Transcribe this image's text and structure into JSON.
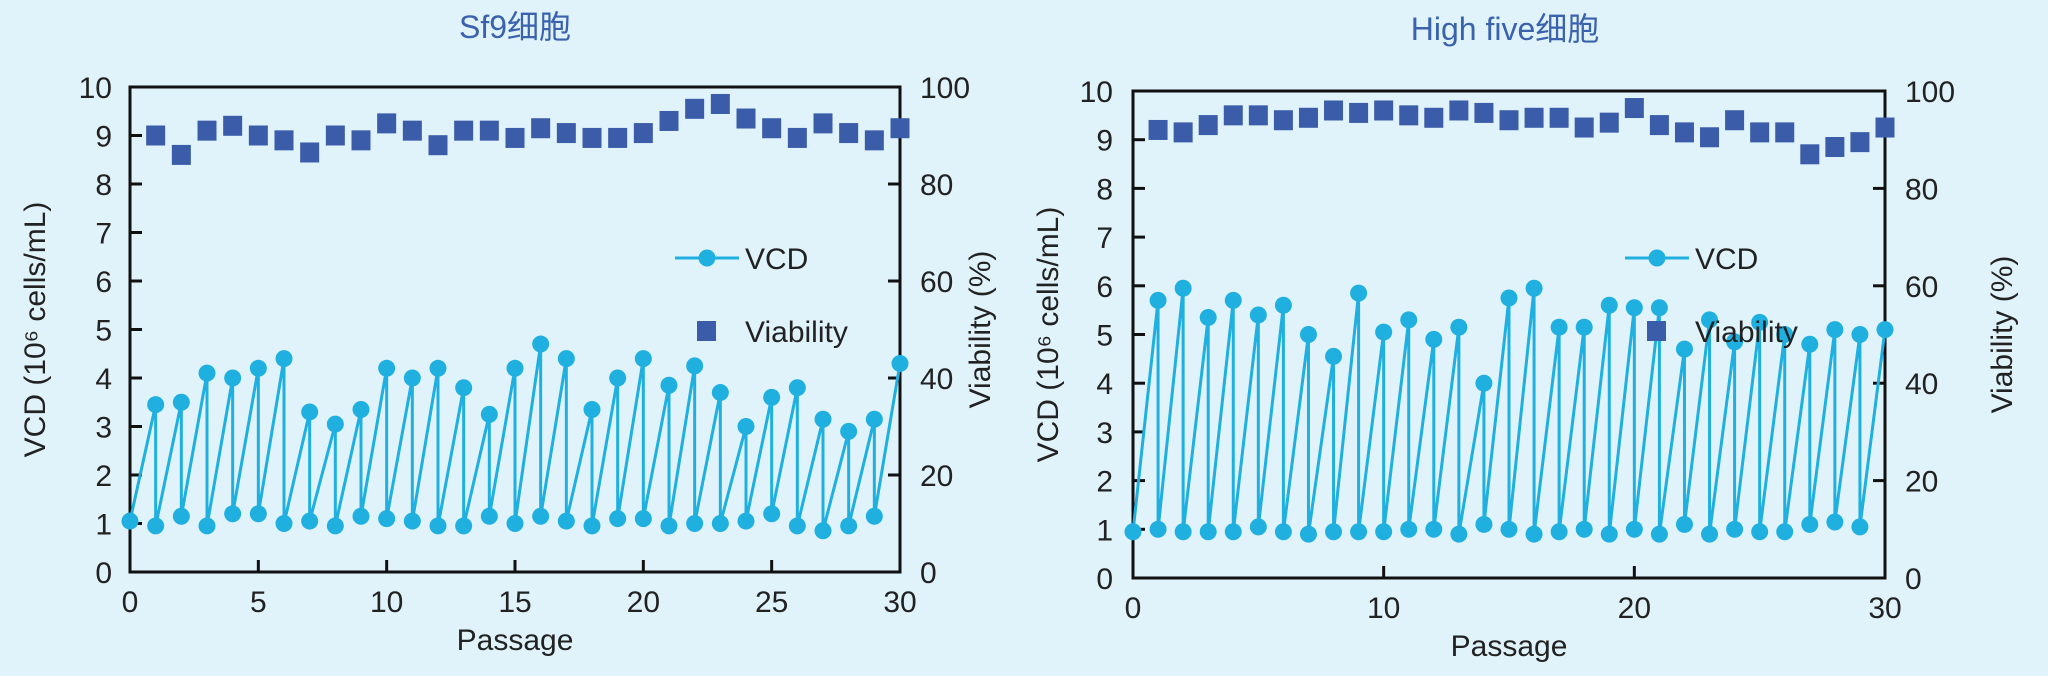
{
  "colors": {
    "background": "#e0f3fb",
    "vcd": "#1fb0e0",
    "viability": "#3a5ca9",
    "title": "#3a62ad"
  },
  "chart_data": [
    {
      "type": "line+scatter (dual axis)",
      "title": "Sf9细胞",
      "xlabel": "Passage",
      "ylabel": "VCD (10⁶ cells/mL)",
      "y2label": "Viability (%)",
      "xlim": [
        0,
        30
      ],
      "ylim": [
        0,
        10
      ],
      "y2lim": [
        0,
        100
      ],
      "xticks": [
        0,
        5,
        10,
        15,
        20,
        25,
        30
      ],
      "yticks": [
        0,
        1,
        2,
        3,
        4,
        5,
        6,
        7,
        8,
        9,
        10
      ],
      "y2ticks": [
        0,
        20,
        40,
        60,
        80,
        100
      ],
      "legend": {
        "placement": "top-right",
        "entries": [
          "VCD",
          "Viability"
        ]
      },
      "grid": false,
      "vcd_seed": {
        "x": [
          0,
          1,
          2,
          3,
          4,
          5,
          6,
          7,
          8,
          9,
          10,
          11,
          12,
          13,
          14,
          15,
          16,
          17,
          18,
          19,
          20,
          21,
          22,
          23,
          24,
          25,
          26,
          27,
          28,
          29
        ],
        "values": [
          1.05,
          0.95,
          1.15,
          0.95,
          1.2,
          1.2,
          1.0,
          1.05,
          0.95,
          1.15,
          1.1,
          1.05,
          0.95,
          0.95,
          1.15,
          1.0,
          1.15,
          1.05,
          0.95,
          1.1,
          1.1,
          0.95,
          1.0,
          1.0,
          1.05,
          1.2,
          0.95,
          0.85,
          0.95,
          1.15
        ]
      },
      "vcd_peak": {
        "x": [
          1,
          2,
          3,
          4,
          5,
          6,
          7,
          8,
          9,
          10,
          11,
          12,
          13,
          14,
          15,
          16,
          17,
          18,
          19,
          20,
          21,
          22,
          23,
          24,
          25,
          26,
          27,
          28,
          29,
          30
        ],
        "values": [
          3.45,
          3.5,
          4.1,
          4.0,
          4.2,
          4.4,
          3.3,
          3.05,
          3.35,
          4.2,
          4.0,
          4.2,
          3.8,
          3.25,
          4.2,
          4.7,
          4.4,
          3.35,
          4.0,
          4.4,
          3.85,
          4.25,
          3.7,
          3.0,
          3.6,
          3.8,
          3.15,
          2.9,
          3.15,
          4.3
        ]
      },
      "viability": {
        "x": [
          1,
          2,
          3,
          4,
          5,
          6,
          7,
          8,
          9,
          10,
          11,
          12,
          13,
          14,
          15,
          16,
          17,
          18,
          19,
          20,
          21,
          22,
          23,
          24,
          25,
          26,
          27,
          28,
          29,
          30
        ],
        "values": [
          90,
          86,
          91,
          92,
          90,
          89,
          86.5,
          90,
          89,
          92.5,
          91,
          88,
          91,
          91,
          89.5,
          91.5,
          90.5,
          89.5,
          89.5,
          90.5,
          93,
          95.5,
          96.5,
          93.5,
          91.5,
          89.5,
          92.5,
          90.5,
          89,
          91.5
        ]
      }
    },
    {
      "type": "line+scatter (dual axis)",
      "title": "High five细胞",
      "xlabel": "Passage",
      "ylabel": "VCD (10⁶ cells/mL)",
      "y2label": "Viability (%)",
      "xlim": [
        0,
        30
      ],
      "ylim": [
        0,
        10
      ],
      "y2lim": [
        0,
        100
      ],
      "xticks": [
        0,
        10,
        20,
        30
      ],
      "yticks": [
        0,
        1,
        2,
        3,
        4,
        5,
        6,
        7,
        8,
        9,
        10
      ],
      "y2ticks": [
        0,
        20,
        40,
        60,
        80,
        100
      ],
      "legend": {
        "placement": "top-right",
        "entries": [
          "VCD",
          "Viability"
        ]
      },
      "grid": false,
      "vcd_seed": {
        "x": [
          0,
          1,
          2,
          3,
          4,
          5,
          6,
          7,
          8,
          9,
          10,
          11,
          12,
          13,
          14,
          15,
          16,
          17,
          18,
          19,
          20,
          21,
          22,
          23,
          24,
          25,
          26,
          27,
          28,
          29
        ],
        "values": [
          0.95,
          1.0,
          0.95,
          0.95,
          0.95,
          1.05,
          0.95,
          0.9,
          0.95,
          0.95,
          0.95,
          1.0,
          1.0,
          0.9,
          1.1,
          1.0,
          0.9,
          0.95,
          1.0,
          0.9,
          1.0,
          0.9,
          1.1,
          0.9,
          1.0,
          0.95,
          0.95,
          1.1,
          1.15,
          1.05
        ]
      },
      "vcd_peak": {
        "x": [
          1,
          2,
          3,
          4,
          5,
          6,
          7,
          8,
          9,
          10,
          11,
          12,
          13,
          14,
          15,
          16,
          17,
          18,
          19,
          20,
          21,
          22,
          23,
          24,
          25,
          26,
          27,
          28,
          29,
          30
        ],
        "values": [
          5.7,
          5.95,
          5.35,
          5.7,
          5.4,
          5.6,
          5.0,
          4.55,
          5.85,
          5.05,
          5.3,
          4.9,
          5.15,
          4.0,
          5.75,
          5.95,
          5.15,
          5.15,
          5.6,
          5.55,
          5.55,
          4.7,
          5.3,
          4.85,
          5.25,
          5.0,
          4.8,
          5.1,
          5.0,
          5.1
        ]
      },
      "viability": {
        "x": [
          1,
          2,
          3,
          4,
          5,
          6,
          7,
          8,
          9,
          10,
          11,
          12,
          13,
          14,
          15,
          16,
          17,
          18,
          19,
          20,
          21,
          22,
          23,
          24,
          25,
          26,
          27,
          28,
          29,
          30
        ],
        "values": [
          92,
          91.5,
          93,
          95,
          95,
          94,
          94.5,
          96,
          95.5,
          96,
          95,
          94.5,
          96,
          95.5,
          94,
          94.5,
          94.5,
          92.5,
          93.5,
          96.5,
          93,
          91.5,
          90.5,
          94,
          91.5,
          91.5,
          87,
          88.5,
          89.5,
          92.5
        ]
      }
    }
  ]
}
